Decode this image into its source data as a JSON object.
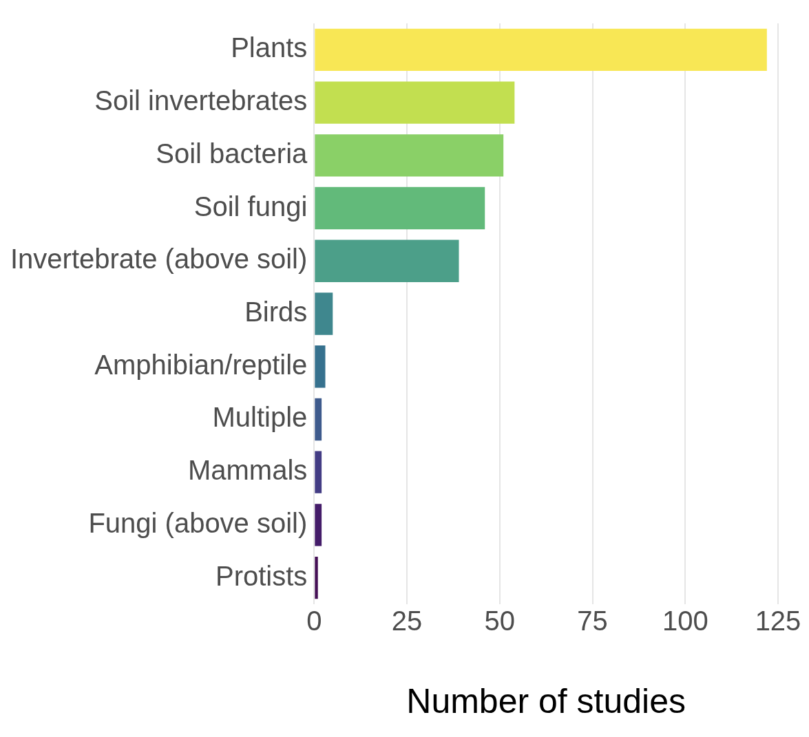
{
  "chart_data": {
    "type": "bar",
    "orientation": "horizontal",
    "xlabel": "Number of studies",
    "categories": [
      "Plants",
      "Soil invertebrates",
      "Soil bacteria",
      "Soil fungi",
      "Invertebrate (above soil)",
      "Birds",
      "Amphibian/reptile",
      "Multiple",
      "Mammals",
      "Fungi (above soil)",
      "Protists"
    ],
    "values": [
      122,
      54,
      51,
      46,
      39,
      5,
      3,
      2,
      2,
      2,
      1
    ],
    "colors": [
      "#f8e755",
      "#c2df50",
      "#8ad067",
      "#62ba7a",
      "#4c9f89",
      "#3f878e",
      "#36718e",
      "#3e5a8c",
      "#433c84",
      "#441c69",
      "#440f55"
    ],
    "xlim": [
      0,
      125
    ],
    "xticks": [
      0,
      25,
      50,
      75,
      100,
      125
    ],
    "grid": "x",
    "legend": false
  }
}
